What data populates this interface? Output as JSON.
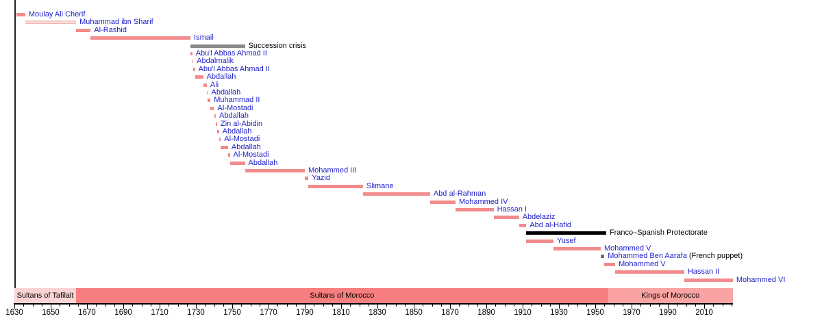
{
  "chart_data": {
    "type": "timeline",
    "axis": {
      "start_year": 1630,
      "end_year": 2025.8,
      "major_tick_step": 20,
      "minor_tick_step": 5,
      "first_major_tick": 1630,
      "last_major_tick": 2010,
      "major_tick_labels": [
        "1630",
        "1650",
        "1670",
        "1690",
        "1710",
        "1730",
        "1750",
        "1770",
        "1790",
        "1810",
        "1830",
        "1850",
        "1870",
        "1890",
        "1910",
        "1930",
        "1950",
        "1970",
        "1990",
        "2010"
      ]
    },
    "colors": {
      "bar": "#f28b8b",
      "bar_light": "#f3b6b6",
      "bar_gray": "#8a8a8a",
      "bar_darkgray": "#6f6f6f",
      "bar_black": "#000000",
      "band_tafilalt": "#fad4d4",
      "band_sultans": "#f87f7f",
      "band_kings": "#faa3a3",
      "label_blue": "#2222cc",
      "label_black": "#000000"
    },
    "bars": [
      {
        "label": "Moulay Ali Cherif",
        "start": 1631,
        "end": 1636,
        "color": "bar",
        "link": true
      },
      {
        "label": "Muhammad ibn Sharif",
        "start": 1636,
        "end": 1664,
        "color": "bar_light",
        "link": true
      },
      {
        "label": "Al-Rashid",
        "start": 1664,
        "end": 1672,
        "color": "bar",
        "link": true
      },
      {
        "label": "Ismail",
        "start": 1672,
        "end": 1727,
        "color": "bar",
        "link": true
      },
      {
        "label": "Succession crisis",
        "start": 1727,
        "end": 1757,
        "color": "bar_gray",
        "link": false
      },
      {
        "label": "Abu'l Abbas Ahmad II",
        "start": 1727,
        "end": 1728,
        "color": "bar",
        "link": true
      },
      {
        "label": "Abdalmalik",
        "start": 1728,
        "end": 1728.4,
        "color": "bar",
        "link": true
      },
      {
        "label": "Abu'l Abbas Ahmad II",
        "start": 1728.4,
        "end": 1729.5,
        "color": "bar",
        "link": true
      },
      {
        "label": "Abdallah",
        "start": 1729.5,
        "end": 1734,
        "color": "bar",
        "link": true
      },
      {
        "label": "Ali",
        "start": 1734,
        "end": 1736,
        "color": "bar",
        "link": true
      },
      {
        "label": "Abdallah",
        "start": 1736,
        "end": 1736.6,
        "color": "bar",
        "link": true
      },
      {
        "label": "Muhammad II",
        "start": 1736.6,
        "end": 1738,
        "color": "bar",
        "link": true
      },
      {
        "label": "Al-Mostadi",
        "start": 1738,
        "end": 1740,
        "color": "bar",
        "link": true
      },
      {
        "label": "Abdallah",
        "start": 1740,
        "end": 1741,
        "color": "bar",
        "link": true
      },
      {
        "label": "Zin al-Abidin",
        "start": 1741,
        "end": 1741.7,
        "color": "bar",
        "link": true
      },
      {
        "label": "Abdallah",
        "start": 1741.7,
        "end": 1742.7,
        "color": "bar",
        "link": true
      },
      {
        "label": "Al-Mostadi",
        "start": 1742.7,
        "end": 1743.7,
        "color": "bar",
        "link": true
      },
      {
        "label": "Abdallah",
        "start": 1743.7,
        "end": 1747.7,
        "color": "bar",
        "link": true
      },
      {
        "label": "Al-Mostadi",
        "start": 1747.7,
        "end": 1748.7,
        "color": "bar",
        "link": true
      },
      {
        "label": "Abdallah",
        "start": 1748.7,
        "end": 1757,
        "color": "bar",
        "link": true
      },
      {
        "label": "Mohammed III",
        "start": 1757,
        "end": 1790,
        "color": "bar",
        "link": true
      },
      {
        "label": "Yazid",
        "start": 1790,
        "end": 1792,
        "color": "bar",
        "link": true
      },
      {
        "label": "Slimane",
        "start": 1792,
        "end": 1822,
        "color": "bar",
        "link": true
      },
      {
        "label": "Abd al-Rahman",
        "start": 1822,
        "end": 1859,
        "color": "bar",
        "link": true
      },
      {
        "label": "Mohammed IV",
        "start": 1859,
        "end": 1873,
        "color": "bar",
        "link": true
      },
      {
        "label": "Hassan I",
        "start": 1873,
        "end": 1894,
        "color": "bar",
        "link": true
      },
      {
        "label": "Abdelaziz",
        "start": 1894,
        "end": 1908,
        "color": "bar",
        "link": true
      },
      {
        "label": "Abd al-Hafid",
        "start": 1908,
        "end": 1912,
        "color": "bar",
        "link": true
      },
      {
        "label": "Franco–Spanish Protectorate",
        "start": 1912,
        "end": 1956,
        "color": "bar_black",
        "link": false
      },
      {
        "label": "Yusef",
        "start": 1912,
        "end": 1927,
        "color": "bar",
        "link": true
      },
      {
        "label": "Mohammed V",
        "start": 1927,
        "end": 1953,
        "color": "bar",
        "link": true
      },
      {
        "label": "Mohammed Ben Aarafa",
        "note": " (French puppet)",
        "start": 1953,
        "end": 1955,
        "color": "bar_darkgray",
        "link": true
      },
      {
        "label": "Mohammed V",
        "start": 1955,
        "end": 1961,
        "color": "bar",
        "link": true
      },
      {
        "label": "Hassan II",
        "start": 1961,
        "end": 1999,
        "color": "bar",
        "link": true
      },
      {
        "label": "Mohammed VI",
        "start": 1999,
        "end": 2025.8,
        "color": "bar",
        "link": true
      }
    ],
    "bands": [
      {
        "label": "Sultans of Tafilalt",
        "start": 1630,
        "end": 1664,
        "color": "band_tafilalt"
      },
      {
        "label": "Sultans of Morocco",
        "start": 1664,
        "end": 1957,
        "color": "band_sultans"
      },
      {
        "label": "Kings of Morocco",
        "start": 1957,
        "end": 2025.8,
        "color": "band_kings"
      }
    ]
  }
}
